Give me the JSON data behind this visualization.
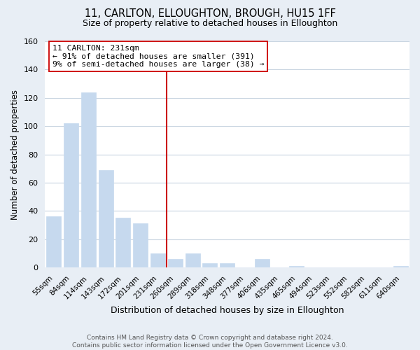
{
  "title": "11, CARLTON, ELLOUGHTON, BROUGH, HU15 1FF",
  "subtitle": "Size of property relative to detached houses in Elloughton",
  "xlabel": "Distribution of detached houses by size in Elloughton",
  "ylabel": "Number of detached properties",
  "bar_labels": [
    "55sqm",
    "84sqm",
    "114sqm",
    "143sqm",
    "172sqm",
    "201sqm",
    "231sqm",
    "260sqm",
    "289sqm",
    "318sqm",
    "348sqm",
    "377sqm",
    "406sqm",
    "435sqm",
    "465sqm",
    "494sqm",
    "523sqm",
    "552sqm",
    "582sqm",
    "611sqm",
    "640sqm"
  ],
  "bar_values": [
    36,
    102,
    124,
    69,
    35,
    31,
    10,
    6,
    10,
    3,
    3,
    0,
    6,
    0,
    1,
    0,
    0,
    0,
    0,
    0,
    1
  ],
  "bar_color": "#c6d9ee",
  "vline_index": 6,
  "vline_color": "#cc0000",
  "annotation_title": "11 CARLTON: 231sqm",
  "annotation_line1": "← 91% of detached houses are smaller (391)",
  "annotation_line2": "9% of semi-detached houses are larger (38) →",
  "ylim": [
    0,
    160
  ],
  "yticks": [
    0,
    20,
    40,
    60,
    80,
    100,
    120,
    140,
    160
  ],
  "footer_line1": "Contains HM Land Registry data © Crown copyright and database right 2024.",
  "footer_line2": "Contains public sector information licensed under the Open Government Licence v3.0.",
  "background_color": "#e8eef5",
  "plot_background": "#ffffff",
  "grid_color": "#c8d4e0"
}
